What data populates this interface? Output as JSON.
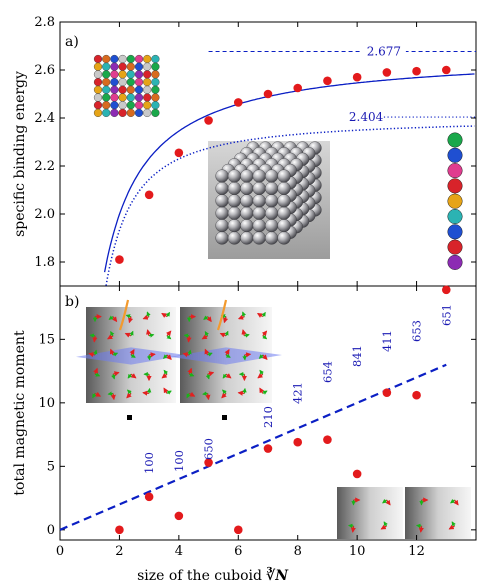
{
  "chart_data": [
    {
      "panel": "a)",
      "type": "scatter",
      "ylabel": "specific binding energy",
      "xlabel": "",
      "xlim": [
        0,
        14
      ],
      "ylim": [
        1.7,
        2.8
      ],
      "yticks": [
        "1.8",
        "2.0",
        "2.2",
        "2.4",
        "2.6",
        "2.8"
      ],
      "series": [
        {
          "kind": "points",
          "x": [
            2,
            3,
            4,
            5,
            6,
            7,
            8,
            9,
            10,
            11,
            12,
            13
          ],
          "y": [
            1.81,
            2.08,
            2.255,
            2.39,
            2.465,
            2.5,
            2.525,
            2.555,
            2.57,
            2.59,
            2.595,
            2.6
          ],
          "color": "#e31a1c"
        },
        {
          "kind": "solid-curve",
          "asymptote": 2.677,
          "color": "#0b1fc4"
        },
        {
          "kind": "dotted-curve",
          "asymptote": 2.404,
          "color": "#0b1fc4"
        }
      ],
      "reference_lines": [
        {
          "value": 2.677,
          "label": "2.677",
          "style": "dashed"
        },
        {
          "value": 2.404,
          "label": "2.404",
          "style": "dotted"
        }
      ],
      "insets": [
        "grid-of-spheres-photo",
        "cube-of-magnetic-balls-photo",
        "chain-of-spheres-photo"
      ]
    },
    {
      "panel": "b)",
      "type": "scatter",
      "ylabel": "total magnetic moment",
      "xlabel": "size of the cuboid",
      "xlabel_math": "∛N",
      "xlim": [
        0,
        14
      ],
      "ylim": [
        -0.8,
        19.2
      ],
      "xticks": [
        "0",
        "2",
        "4",
        "6",
        "8",
        "10",
        "12"
      ],
      "yticks": [
        "0",
        "5",
        "10",
        "15"
      ],
      "series": [
        {
          "kind": "points",
          "x": [
            2,
            3,
            4,
            5,
            6,
            7,
            8,
            9,
            10,
            11,
            12,
            13
          ],
          "y": [
            0,
            2.6,
            1.1,
            5.3,
            0,
            6.4,
            6.9,
            7.1,
            4.4,
            10.8,
            10.6,
            18.9
          ],
          "color": "#e31a1c"
        },
        {
          "kind": "dashed-fit",
          "from": [
            0,
            0
          ],
          "to": [
            13,
            13
          ],
          "color": "#0b1fc4"
        }
      ],
      "annotations": [
        {
          "x": 3,
          "label": "100"
        },
        {
          "x": 4,
          "label": "100"
        },
        {
          "x": 5,
          "label": "650"
        },
        {
          "x": 7,
          "label": "210"
        },
        {
          "x": 8,
          "label": "421"
        },
        {
          "x": 9,
          "label": "654"
        },
        {
          "x": 10,
          "label": "841"
        },
        {
          "x": 11,
          "label": "411"
        },
        {
          "x": 12,
          "label": "653"
        },
        {
          "x": 13,
          "label": "651"
        }
      ],
      "insets": [
        "spin-configuration-left",
        "spin-configuration-right",
        "spin-configuration-small"
      ]
    }
  ]
}
